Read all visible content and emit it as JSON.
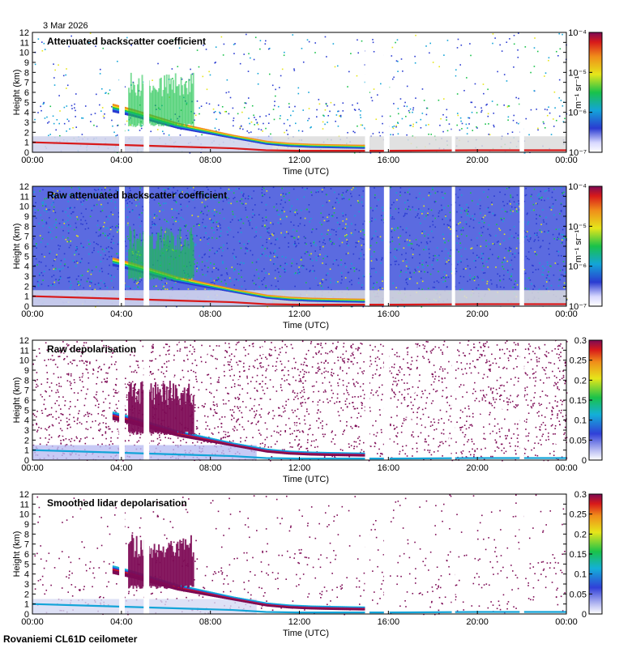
{
  "header": {
    "date": "3 Mar 2026"
  },
  "footer": {
    "site": "Rovaniemi CL61D ceilometer"
  },
  "chart_data": [
    {
      "type": "heatmap",
      "title": "Attenuated backscatter coefficient",
      "xlabel": "Time (UTC)",
      "ylabel": "Height (km)",
      "x_ticks": [
        "00:00",
        "04:00",
        "08:00",
        "12:00",
        "16:00",
        "20:00",
        "00:00"
      ],
      "y_ticks": [
        "0",
        "1",
        "2",
        "3",
        "4",
        "5",
        "6",
        "7",
        "8",
        "9",
        "10",
        "11",
        "12"
      ],
      "ylim": [
        0,
        12
      ],
      "colorbar": {
        "scale": "log",
        "unit": "m⁻¹ sr⁻¹",
        "ticks": [
          "10⁻⁷",
          "10⁻⁶",
          "10⁻⁵",
          "10⁻⁴"
        ]
      }
    },
    {
      "type": "heatmap",
      "title": "Raw attenuated backscatter coefficient",
      "xlabel": "Time (UTC)",
      "ylabel": "Height (km)",
      "x_ticks": [
        "00:00",
        "04:00",
        "08:00",
        "12:00",
        "16:00",
        "20:00",
        "00:00"
      ],
      "y_ticks": [
        "0",
        "1",
        "2",
        "3",
        "4",
        "5",
        "6",
        "7",
        "8",
        "9",
        "10",
        "11",
        "12"
      ],
      "ylim": [
        0,
        12
      ],
      "colorbar": {
        "scale": "log",
        "unit": "m⁻¹ sr⁻¹",
        "ticks": [
          "10⁻⁷",
          "10⁻⁶",
          "10⁻⁵",
          "10⁻⁴"
        ]
      }
    },
    {
      "type": "heatmap",
      "title": "Raw depolarisation",
      "xlabel": "Time (UTC)",
      "ylabel": "Height (km)",
      "x_ticks": [
        "00:00",
        "04:00",
        "08:00",
        "12:00",
        "16:00",
        "20:00",
        "00:00"
      ],
      "y_ticks": [
        "0",
        "1",
        "2",
        "3",
        "4",
        "5",
        "6",
        "7",
        "8",
        "9",
        "10",
        "11",
        "12"
      ],
      "ylim": [
        0,
        12
      ],
      "colorbar": {
        "scale": "linear",
        "unit": "",
        "ticks": [
          "0",
          "0.05",
          "0.1",
          "0.15",
          "0.2",
          "0.25",
          "0.3"
        ]
      }
    },
    {
      "type": "heatmap",
      "title": "Smoothed lidar depolarisation",
      "xlabel": "Time (UTC)",
      "ylabel": "Height (km)",
      "x_ticks": [
        "00:00",
        "04:00",
        "08:00",
        "12:00",
        "16:00",
        "20:00",
        "00:00"
      ],
      "y_ticks": [
        "0",
        "1",
        "2",
        "3",
        "4",
        "5",
        "6",
        "7",
        "8",
        "9",
        "10",
        "11",
        "12"
      ],
      "ylim": [
        0,
        12
      ],
      "colorbar": {
        "scale": "linear",
        "unit": "",
        "ticks": [
          "0",
          "0.05",
          "0.1",
          "0.15",
          "0.2",
          "0.25",
          "0.3"
        ]
      }
    }
  ],
  "features": {
    "boundary_layer_km": [
      [
        0,
        1.0
      ],
      [
        3,
        0.8
      ],
      [
        6,
        0.6
      ],
      [
        9,
        0.4
      ],
      [
        10.5,
        0.2
      ],
      [
        12,
        0.15
      ],
      [
        16,
        0.15
      ],
      [
        20,
        0.2
      ],
      [
        24,
        0.2
      ]
    ],
    "cloud_base_km": [
      [
        3.5,
        4.1
      ],
      [
        4.5,
        3.6
      ],
      [
        5.5,
        3.0
      ],
      [
        6.5,
        2.4
      ],
      [
        7.5,
        2.0
      ],
      [
        8.5,
        1.6
      ],
      [
        9.5,
        1.2
      ],
      [
        10.5,
        0.8
      ],
      [
        11.5,
        0.6
      ],
      [
        12.5,
        0.5
      ],
      [
        13.5,
        0.45
      ],
      [
        14.8,
        0.4
      ]
    ],
    "data_gaps_hours": [
      [
        3.9,
        4.15
      ],
      [
        5.0,
        5.25
      ],
      [
        14.95,
        15.15
      ],
      [
        15.8,
        16.05
      ],
      [
        18.85,
        19.0
      ],
      [
        21.9,
        22.1
      ]
    ]
  }
}
